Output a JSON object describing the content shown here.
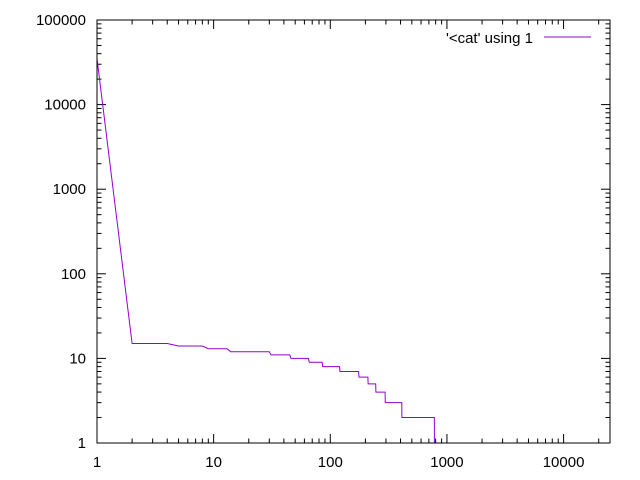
{
  "chart_data": {
    "type": "line",
    "title": "",
    "xlabel": "",
    "ylabel": "",
    "xscale": "log",
    "yscale": "log",
    "xlim": [
      1,
      25000
    ],
    "ylim": [
      1,
      100000
    ],
    "grid": false,
    "legend_position": "top-right",
    "x_tick_labels": [
      {
        "value": 1,
        "label": "1"
      },
      {
        "value": 10,
        "label": "10"
      },
      {
        "value": 100,
        "label": "100"
      },
      {
        "value": 1000,
        "label": "1000"
      },
      {
        "value": 10000,
        "label": "10000"
      }
    ],
    "y_tick_labels": [
      {
        "value": 1,
        "label": "1"
      },
      {
        "value": 10,
        "label": "10"
      },
      {
        "value": 100,
        "label": "100"
      },
      {
        "value": 1000,
        "label": "1000"
      },
      {
        "value": 10000,
        "label": "10000"
      },
      {
        "value": 100000,
        "label": "100000"
      }
    ],
    "series": [
      {
        "name": "'<cat' using 1",
        "color": "#9400d3",
        "style": "steps",
        "points": [
          [
            1,
            35000
          ],
          [
            2,
            15
          ],
          [
            4,
            15
          ],
          [
            5,
            14
          ],
          [
            8,
            14
          ],
          [
            9,
            13
          ],
          [
            13,
            13
          ],
          [
            14,
            12
          ],
          [
            30,
            12
          ],
          [
            31,
            11
          ],
          [
            45,
            11
          ],
          [
            46,
            10
          ],
          [
            65,
            10
          ],
          [
            66,
            9
          ],
          [
            85,
            9
          ],
          [
            86,
            8
          ],
          [
            120,
            8
          ],
          [
            121,
            7
          ],
          [
            175,
            7
          ],
          [
            176,
            6
          ],
          [
            210,
            6
          ],
          [
            211,
            5
          ],
          [
            245,
            5
          ],
          [
            246,
            4
          ],
          [
            295,
            4
          ],
          [
            296,
            3
          ],
          [
            410,
            3
          ],
          [
            411,
            2
          ],
          [
            780,
            2
          ],
          [
            781,
            1
          ]
        ]
      }
    ]
  }
}
